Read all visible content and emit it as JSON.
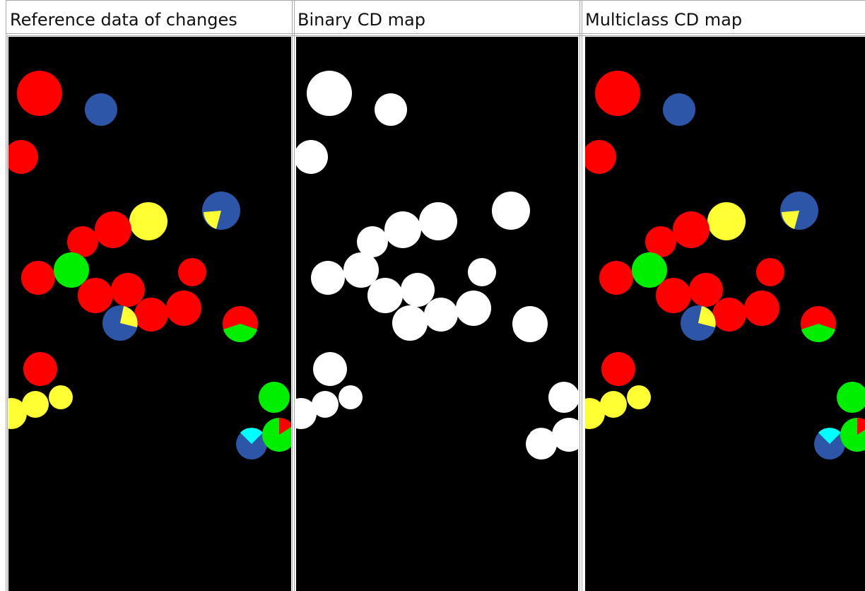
{
  "table": {
    "headers": [
      "Reference data of changes",
      "Binary CD map",
      "Multiclass CD map"
    ]
  }
}
